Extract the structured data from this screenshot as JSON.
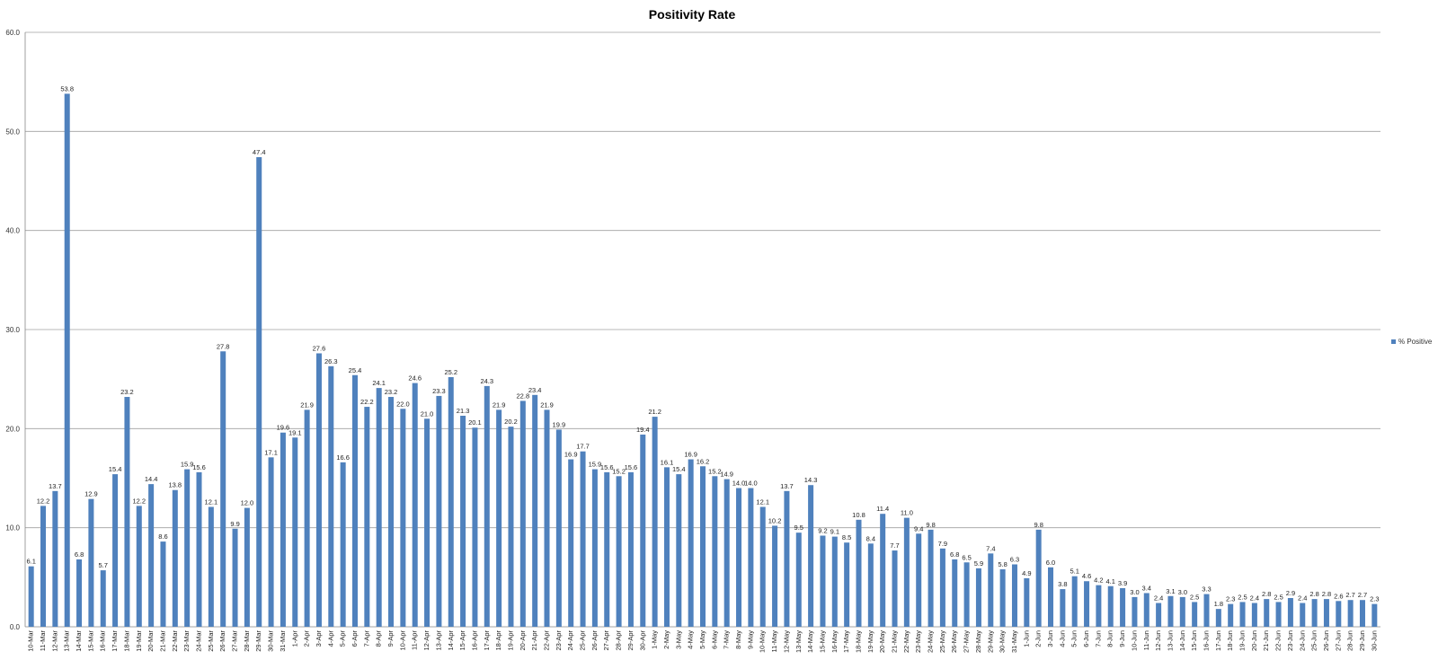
{
  "chart_data": {
    "type": "bar",
    "title": "Positivity Rate",
    "xlabel": "",
    "ylabel": "",
    "ylim": [
      0,
      60
    ],
    "yticks": [
      "0.0",
      "10.0",
      "20.0",
      "30.0",
      "40.0",
      "50.0",
      "60.0"
    ],
    "grid": true,
    "legend_placement": "right",
    "bar_color": "#4f81bd",
    "categories": [
      "10-Mar",
      "11-Mar",
      "12-Mar",
      "13-Mar",
      "14-Mar",
      "15-Mar",
      "16-Mar",
      "17-Mar",
      "18-Mar",
      "19-Mar",
      "20-Mar",
      "21-Mar",
      "22-Mar",
      "23-Mar",
      "24-Mar",
      "25-Mar",
      "26-Mar",
      "27-Mar",
      "28-Mar",
      "29-Mar",
      "30-Mar",
      "31-Mar",
      "1-Apr",
      "2-Apr",
      "3-Apr",
      "4-Apr",
      "5-Apr",
      "6-Apr",
      "7-Apr",
      "8-Apr",
      "9-Apr",
      "10-Apr",
      "11-Apr",
      "12-Apr",
      "13-Apr",
      "14-Apr",
      "15-Apr",
      "16-Apr",
      "17-Apr",
      "18-Apr",
      "19-Apr",
      "20-Apr",
      "21-Apr",
      "22-Apr",
      "23-Apr",
      "24-Apr",
      "25-Apr",
      "26-Apr",
      "27-Apr",
      "28-Apr",
      "29-Apr",
      "30-Apr",
      "1-May",
      "2-May",
      "3-May",
      "4-May",
      "5-May",
      "6-May",
      "7-May",
      "8-May",
      "9-May",
      "10-May",
      "11-May",
      "12-May",
      "13-May",
      "14-May",
      "15-May",
      "16-May",
      "17-May",
      "18-May",
      "19-May",
      "20-May",
      "21-May",
      "22-May",
      "23-May",
      "24-May",
      "25-May",
      "26-May",
      "27-May",
      "28-May",
      "29-May",
      "30-May",
      "31-May",
      "1-Jun",
      "2-Jun",
      "3-Jun",
      "4-Jun",
      "5-Jun",
      "6-Jun",
      "7-Jun",
      "8-Jun",
      "9-Jun",
      "10-Jun",
      "11-Jun",
      "12-Jun",
      "13-Jun",
      "14-Jun",
      "15-Jun",
      "16-Jun",
      "17-Jun",
      "18-Jun",
      "19-Jun",
      "20-Jun",
      "21-Jun",
      "22-Jun",
      "23-Jun",
      "24-Jun",
      "25-Jun",
      "26-Jun",
      "27-Jun",
      "28-Jun",
      "29-Jun",
      "30-Jun"
    ],
    "series": [
      {
        "name": "% Positive",
        "values": [
          6.1,
          12.2,
          13.7,
          53.8,
          6.8,
          12.9,
          5.7,
          15.4,
          23.2,
          12.2,
          14.4,
          8.6,
          13.8,
          15.9,
          15.6,
          12.1,
          27.8,
          9.9,
          12.0,
          47.4,
          17.1,
          19.6,
          19.1,
          21.9,
          27.6,
          26.3,
          16.6,
          25.4,
          22.2,
          24.1,
          23.2,
          22.0,
          24.6,
          21.0,
          23.3,
          25.2,
          21.3,
          20.1,
          24.3,
          21.9,
          20.2,
          22.8,
          23.4,
          21.9,
          19.9,
          16.9,
          17.7,
          15.9,
          15.6,
          15.2,
          15.6,
          19.4,
          21.2,
          16.1,
          15.4,
          16.9,
          16.2,
          15.2,
          14.9,
          14.0,
          14.0,
          12.1,
          10.2,
          13.7,
          9.5,
          14.3,
          9.2,
          9.1,
          8.5,
          10.8,
          8.4,
          11.4,
          7.7,
          11.0,
          9.4,
          9.8,
          7.9,
          6.8,
          6.5,
          5.9,
          7.4,
          5.8,
          6.3,
          4.9,
          9.8,
          6.0,
          3.8,
          5.1,
          4.6,
          4.2,
          4.1,
          3.9,
          3.0,
          3.4,
          2.4,
          3.1,
          3.0,
          2.5,
          3.3,
          1.8,
          2.3,
          2.5,
          2.4,
          2.8,
          2.5,
          2.9,
          2.4,
          2.8,
          2.8,
          2.6,
          2.7,
          2.7,
          2.3
        ]
      }
    ]
  }
}
